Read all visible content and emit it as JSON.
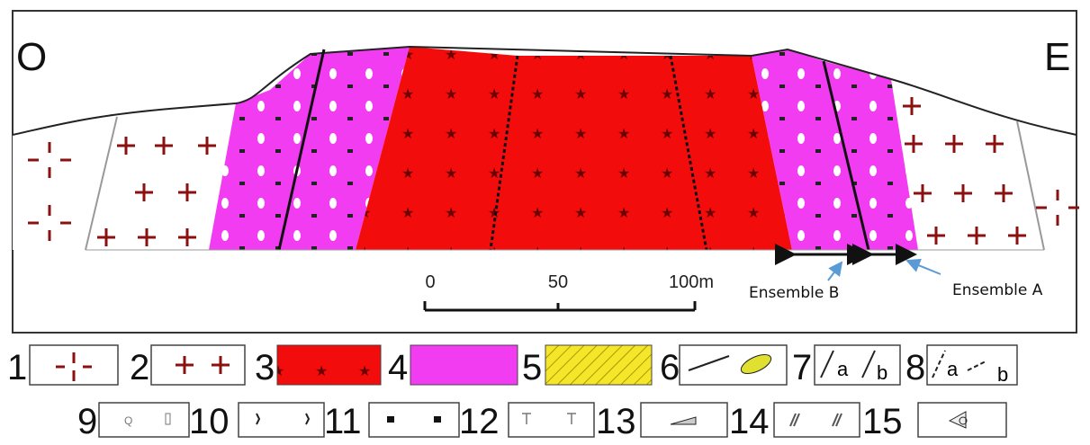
{
  "labels": {
    "west": "O",
    "east": "E"
  },
  "scale": {
    "ticks": [
      "0",
      "50",
      "100m"
    ]
  },
  "annotations": {
    "ensemble_b": "Ensemble B",
    "ensemble_a": "Ensemble A"
  },
  "legend": {
    "items": [
      {
        "number": "1"
      },
      {
        "number": "2"
      },
      {
        "number": "3"
      },
      {
        "number": "4"
      },
      {
        "number": "5"
      },
      {
        "number": "6"
      },
      {
        "number": "7",
        "marks": [
          "a",
          "b"
        ]
      },
      {
        "number": "8",
        "marks": [
          "a",
          "b"
        ]
      },
      {
        "number": "9",
        "marks": [
          "Q"
        ]
      },
      {
        "number": "10"
      },
      {
        "number": "11"
      },
      {
        "number": "12"
      },
      {
        "number": "13"
      },
      {
        "number": "14"
      },
      {
        "number": "15"
      }
    ]
  }
}
